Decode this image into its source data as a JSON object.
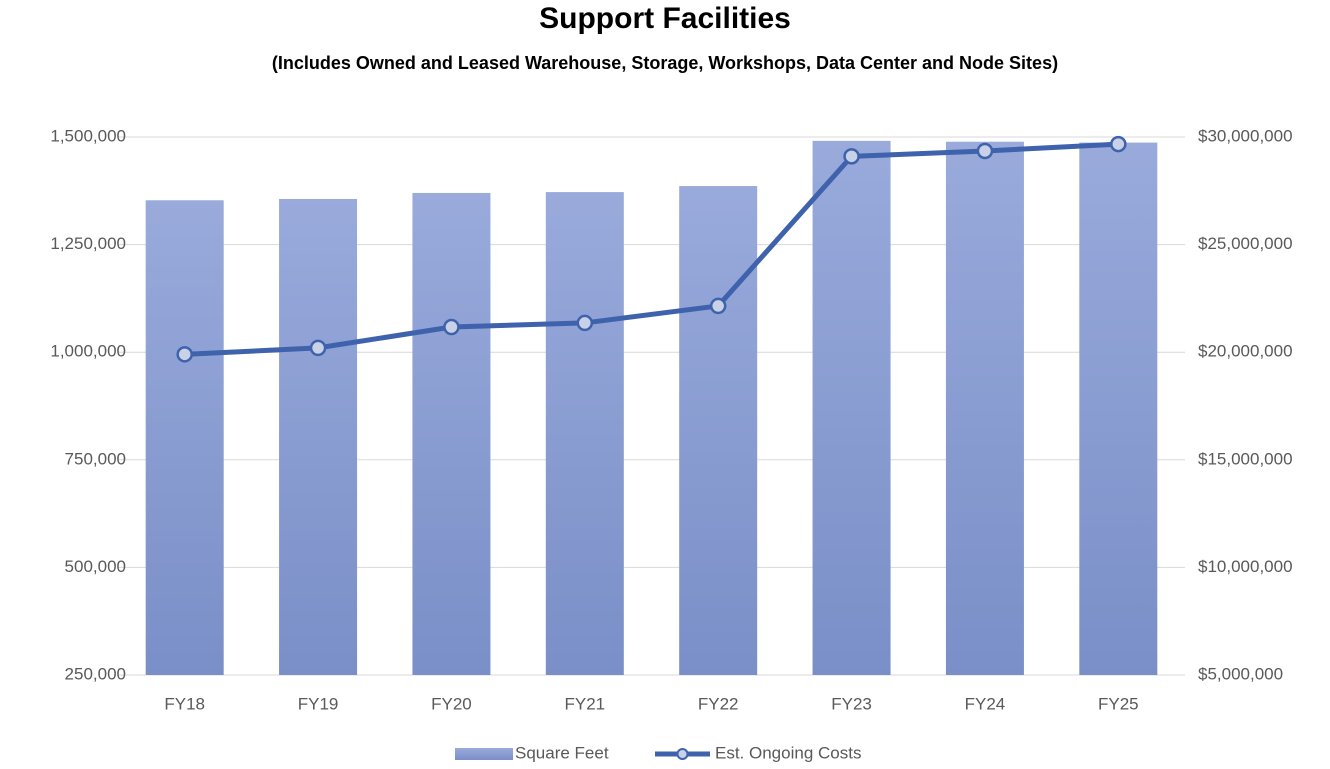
{
  "chart_data": {
    "type": "bar",
    "title": "Support Facilities",
    "subtitle": "(Includes Owned and Leased Warehouse, Storage, Workshops, Data Center and Node Sites)",
    "categories": [
      "FY18",
      "FY19",
      "FY20",
      "FY21",
      "FY22",
      "FY23",
      "FY24",
      "FY25"
    ],
    "series": [
      {
        "name": "Square Feet",
        "type": "bar",
        "color": "#8a9dd2",
        "values": [
          1353000,
          1356000,
          1370000,
          1372000,
          1386000,
          1491000,
          1489000,
          1487000
        ]
      },
      {
        "name": "Est. Ongoing Costs",
        "type": "line",
        "axis": "y2",
        "color": "#3f62ad",
        "values": [
          19900000,
          20200000,
          21170000,
          21360000,
          22150000,
          29100000,
          29350000,
          29670000
        ]
      }
    ],
    "ylim": [
      250000,
      1500000
    ],
    "yticks": [
      {
        "value": 250000,
        "label": "250,000"
      },
      {
        "value": 500000,
        "label": "500,000"
      },
      {
        "value": 750000,
        "label": "750,000"
      },
      {
        "value": 1000000,
        "label": "1,000,000"
      },
      {
        "value": 1250000,
        "label": "1,250,000"
      },
      {
        "value": 1500000,
        "label": "1,500,000"
      }
    ],
    "y2lim": [
      5000000,
      30000000
    ],
    "y2ticks": [
      {
        "value": 5000000,
        "label": "$5,000,000"
      },
      {
        "value": 10000000,
        "label": "$10,000,000"
      },
      {
        "value": 15000000,
        "label": "$15,000,000"
      },
      {
        "value": 20000000,
        "label": "$20,000,000"
      },
      {
        "value": 25000000,
        "label": "$25,000,000"
      },
      {
        "value": 30000000,
        "label": "$30,000,000"
      }
    ],
    "grid": true,
    "legend": "bottom"
  }
}
